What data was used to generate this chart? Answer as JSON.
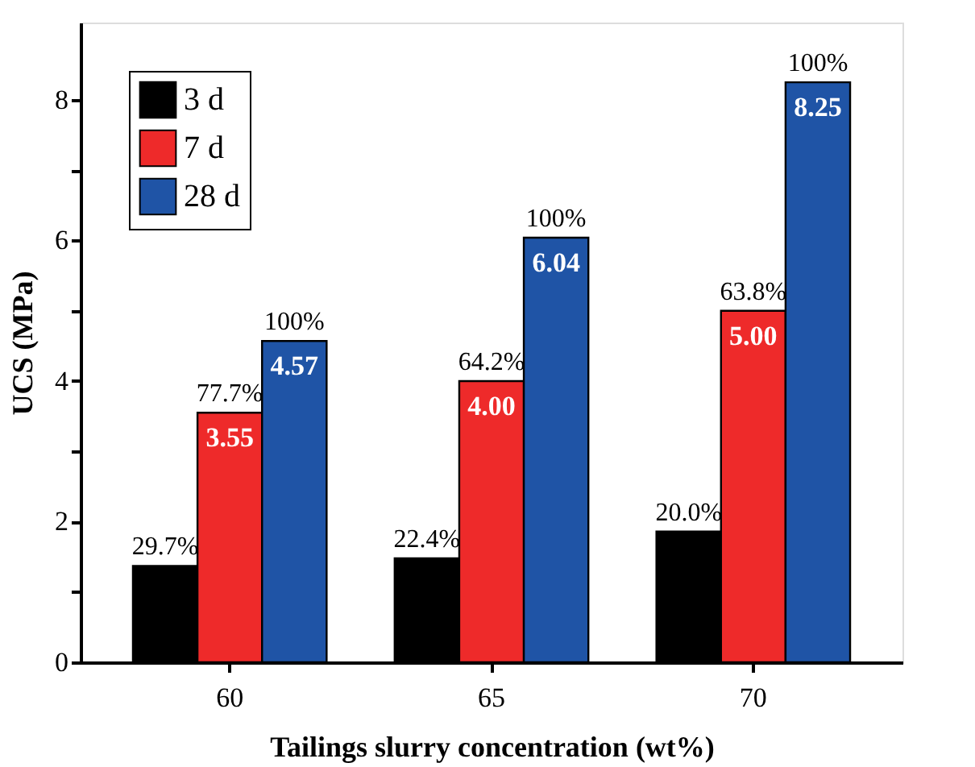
{
  "chart_data": {
    "type": "bar",
    "xlabel": "Tailings slurry concentration (wt%)",
    "ylabel": "UCS (MPa)",
    "categories": [
      "60",
      "65",
      "70"
    ],
    "series": [
      {
        "name": "3 d",
        "color": "#000000",
        "values": [
          1.37,
          1.48,
          1.86
        ]
      },
      {
        "name": "7 d",
        "color": "#ee2a2a",
        "values": [
          3.55,
          4.0,
          5.0
        ],
        "value_labels": [
          "3.55",
          "4.00",
          "5.00"
        ]
      },
      {
        "name": "28 d",
        "color": "#1f54a6",
        "values": [
          4.57,
          6.04,
          8.25
        ],
        "value_labels": [
          "4.57",
          "6.04",
          "8.25"
        ]
      }
    ],
    "ylim": [
      0,
      9.1
    ],
    "yticks": [
      0,
      {
        "value": 1,
        "label": null
      },
      2,
      {
        "value": 3,
        "label": null
      },
      4,
      {
        "value": 5,
        "label": null
      },
      6,
      {
        "value": 7,
        "label": null
      },
      8
    ],
    "annotations": [
      "29.7%",
      "77.7%",
      "100%",
      "22.4%",
      "64.2%",
      "100%",
      "20.0%",
      "63.8%",
      "100%"
    ],
    "legend": "top left",
    "grid": false
  }
}
